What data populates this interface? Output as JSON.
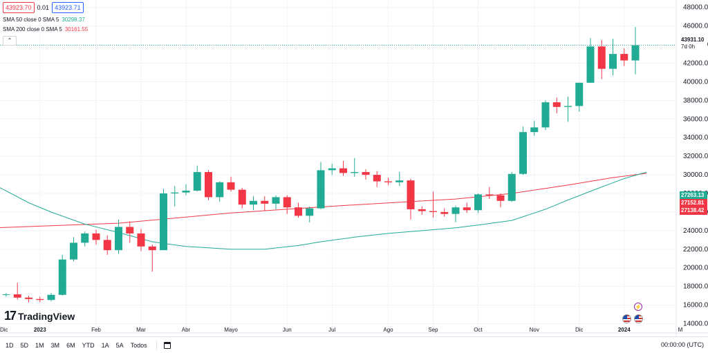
{
  "quotes": {
    "sell": "43923.70",
    "spread": "0.01",
    "buy": "43923.71"
  },
  "legend": [
    {
      "label": "SMA 50 close 0 SMA 5",
      "value": "30298.37",
      "color": "#22ab94"
    },
    {
      "label": "SMA 200 close 0 SMA 5",
      "value": "30161.55",
      "color": "#f23645"
    }
  ],
  "collapse_symbol": "⌃",
  "price_tags": {
    "last_price": "43931.10",
    "countdown": "7d 0h",
    "sma50_tag": "27263.13",
    "mid_tag": "27152.81",
    "sma200_tag": "27138.42"
  },
  "brand": {
    "mark": "17",
    "name": "TradingView"
  },
  "bottom_bar": {
    "ranges": [
      "1D",
      "5D",
      "1M",
      "3M",
      "6M",
      "YTD",
      "1A",
      "5A",
      "Todos"
    ],
    "clock": "00:00:00 (UTC)"
  },
  "icons": {
    "flash": "flash-icon",
    "flags": [
      "us-flag-icon",
      "us-flag-icon"
    ]
  },
  "colors": {
    "up": "#22ab94",
    "down": "#f23645",
    "sma50": "#22ab94",
    "sma200": "#f23645",
    "last_line": "#22ab94"
  },
  "chart_data": {
    "type": "candlestick",
    "title": "",
    "y_ticks": [
      14000,
      16000,
      18000,
      20000,
      22000,
      24000,
      26000,
      28000,
      30000,
      32000,
      34000,
      36000,
      38000,
      40000,
      42000,
      44000,
      46000,
      48000
    ],
    "ylim": [
      13000,
      48500
    ],
    "grid": true,
    "x_labels": [
      {
        "label": "Dic",
        "week": -1
      },
      {
        "label": "2023",
        "week": 3
      },
      {
        "label": "Feb",
        "week": 8
      },
      {
        "label": "Mar",
        "week": 12
      },
      {
        "label": "Abr",
        "week": 16
      },
      {
        "label": "Mayo",
        "week": 20
      },
      {
        "label": "Jun",
        "week": 25
      },
      {
        "label": "Jul",
        "week": 29
      },
      {
        "label": "Ago",
        "week": 34
      },
      {
        "label": "Sep",
        "week": 38
      },
      {
        "label": "Oct",
        "week": 42
      },
      {
        "label": "Nov",
        "week": 47
      },
      {
        "label": "Dic",
        "week": 51
      },
      {
        "label": "2024",
        "week": 55
      },
      {
        "label": "M",
        "week": 60
      }
    ],
    "candles": [
      [
        17100,
        17300,
        16900,
        17150
      ],
      [
        17150,
        18400,
        16600,
        16800
      ],
      [
        16800,
        17000,
        16300,
        16650
      ],
      [
        16650,
        16900,
        16300,
        16550
      ],
      [
        16550,
        17300,
        16400,
        17100
      ],
      [
        17100,
        21400,
        17000,
        20900
      ],
      [
        20900,
        23300,
        20700,
        22700
      ],
      [
        22700,
        23900,
        22300,
        23700
      ],
      [
        23700,
        24100,
        22500,
        23000
      ],
      [
        23000,
        23500,
        21400,
        21900
      ],
      [
        21900,
        25200,
        21500,
        24400
      ],
      [
        24400,
        25000,
        22700,
        23700
      ],
      [
        23700,
        24200,
        21800,
        22300
      ],
      [
        22300,
        22500,
        19600,
        21900
      ],
      [
        21900,
        28500,
        21900,
        28000
      ],
      [
        28000,
        28800,
        26600,
        28100
      ],
      [
        28100,
        29000,
        27800,
        28300
      ],
      [
        28300,
        31000,
        28200,
        30300
      ],
      [
        30300,
        30500,
        27300,
        27600
      ],
      [
        27600,
        29300,
        27100,
        29200
      ],
      [
        29200,
        29800,
        28200,
        28400
      ],
      [
        28400,
        28600,
        26400,
        26800
      ],
      [
        26800,
        27700,
        26200,
        27200
      ],
      [
        27200,
        27700,
        26100,
        26900
      ],
      [
        26900,
        27800,
        26300,
        27600
      ],
      [
        27600,
        27800,
        25800,
        26500
      ],
      [
        26500,
        27000,
        25400,
        25600
      ],
      [
        25600,
        26600,
        24900,
        26400
      ],
      [
        26400,
        31400,
        26300,
        30500
      ],
      [
        30500,
        31200,
        30000,
        30700
      ],
      [
        30700,
        31500,
        29900,
        30200
      ],
      [
        30200,
        31800,
        29800,
        30300
      ],
      [
        30300,
        30600,
        29500,
        30000
      ],
      [
        30000,
        30400,
        28700,
        29300
      ],
      [
        29300,
        29700,
        28900,
        29200
      ],
      [
        29200,
        30300,
        28800,
        29400
      ],
      [
        29400,
        29600,
        25200,
        26300
      ],
      [
        26300,
        26600,
        25700,
        26100
      ],
      [
        26100,
        28200,
        25400,
        26000
      ],
      [
        26000,
        26400,
        25500,
        25800
      ],
      [
        25800,
        26700,
        24900,
        26500
      ],
      [
        26500,
        27000,
        25900,
        26200
      ],
      [
        26200,
        28000,
        25900,
        27900
      ],
      [
        27900,
        28700,
        27400,
        27800
      ],
      [
        27800,
        28000,
        26500,
        27200
      ],
      [
        27200,
        30300,
        27100,
        30100
      ],
      [
        30100,
        35200,
        30000,
        34600
      ],
      [
        34600,
        35800,
        34200,
        35100
      ],
      [
        35100,
        38000,
        34800,
        37800
      ],
      [
        37800,
        38300,
        36600,
        37300
      ],
      [
        37300,
        38400,
        35700,
        37400
      ],
      [
        37400,
        39900,
        36800,
        39900
      ],
      [
        39900,
        44700,
        39900,
        43800
      ],
      [
        43800,
        44500,
        40300,
        41400
      ],
      [
        41400,
        44600,
        40700,
        43000
      ],
      [
        43000,
        43600,
        41700,
        42300
      ],
      [
        42300,
        45900,
        40800,
        43931
      ]
    ],
    "sma50": [
      [
        -1,
        28900
      ],
      [
        2,
        27000
      ],
      [
        4,
        26000
      ],
      [
        7,
        24700
      ],
      [
        10,
        23800
      ],
      [
        13,
        22800
      ],
      [
        16,
        22300
      ],
      [
        20,
        22000
      ],
      [
        23,
        22000
      ],
      [
        26,
        22400
      ],
      [
        28,
        22800
      ],
      [
        31,
        23300
      ],
      [
        34,
        23700
      ],
      [
        37,
        24000
      ],
      [
        40,
        24300
      ],
      [
        42,
        24600
      ],
      [
        45,
        25100
      ],
      [
        48,
        26300
      ],
      [
        50,
        27300
      ],
      [
        53,
        28700
      ],
      [
        55,
        29600
      ],
      [
        57,
        30298
      ]
    ],
    "sma200": [
      [
        -1,
        24300
      ],
      [
        10,
        24800
      ],
      [
        20,
        25900
      ],
      [
        30,
        26700
      ],
      [
        40,
        27400
      ],
      [
        45,
        28000
      ],
      [
        50,
        28900
      ],
      [
        54,
        29700
      ],
      [
        57,
        30161
      ]
    ]
  }
}
